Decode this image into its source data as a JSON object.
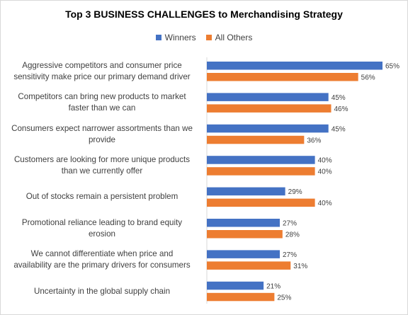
{
  "chart_data": {
    "type": "bar",
    "orientation": "horizontal",
    "title": "Top 3 BUSINESS CHALLENGES to Merchandising Strategy",
    "legend_position": "top",
    "grid": false,
    "xlim": [
      0,
      65
    ],
    "value_suffix": "%",
    "categories": [
      "Aggressive competitors and consumer price sensitivity make price our primary demand driver",
      "Competitors can bring new products to market faster than we can",
      "Consumers expect narrower assortments than we provide",
      "Customers are looking for more unique products than we currently offer",
      "Out of stocks remain a persistent problem",
      "Promotional reliance leading to brand equity erosion",
      "We cannot differentiate when price and availability are the primary drivers for consumers",
      "Uncertainty in the global supply chain"
    ],
    "series": [
      {
        "name": "Winners",
        "color": "#4472C4",
        "values": [
          65,
          45,
          45,
          40,
          29,
          27,
          27,
          21
        ]
      },
      {
        "name": "All Others",
        "color": "#ED7D31",
        "values": [
          56,
          46,
          36,
          40,
          40,
          28,
          31,
          25
        ]
      }
    ]
  }
}
